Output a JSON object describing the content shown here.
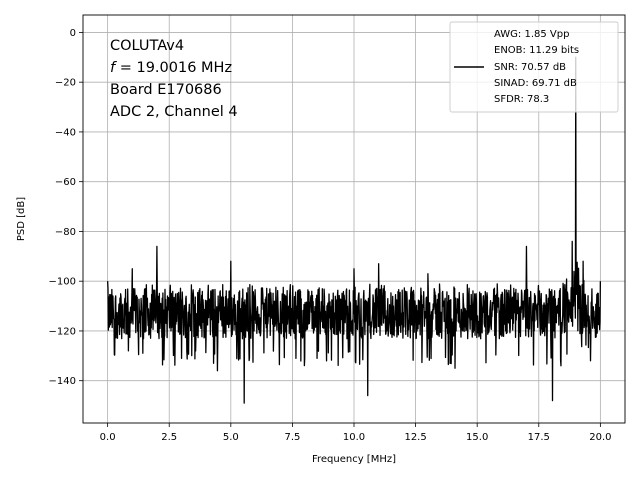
{
  "chart_data": {
    "type": "line",
    "title": "",
    "xlabel": "Frequency [MHz]",
    "ylabel": "PSD [dB]",
    "xlim": [
      -1.0,
      21.0
    ],
    "ylim": [
      -157,
      7
    ],
    "xticks": [
      0.0,
      2.5,
      5.0,
      7.5,
      10.0,
      12.5,
      15.0,
      17.5,
      20.0
    ],
    "xtick_labels": [
      "0.0",
      "2.5",
      "5.0",
      "7.5",
      "10.0",
      "12.5",
      "15.0",
      "17.5",
      "20.0"
    ],
    "yticks": [
      0,
      -20,
      -40,
      -60,
      -80,
      -100,
      -120,
      -140
    ],
    "ytick_labels": [
      "0",
      "−20",
      "−40",
      "−60",
      "−80",
      "−100",
      "−120",
      "−140"
    ],
    "grid": true,
    "line_color": "#000000",
    "noise_floor_db": -113,
    "noise_band_db": [
      -128,
      -104
    ],
    "peaks": [
      {
        "x": 0.0,
        "y": -100
      },
      {
        "x": 1.0,
        "y": -95
      },
      {
        "x": 2.0,
        "y": -86
      },
      {
        "x": 3.0,
        "y": -91
      },
      {
        "x": 5.0,
        "y": -92
      },
      {
        "x": 10.0,
        "y": -95
      },
      {
        "x": 11.0,
        "y": -93
      },
      {
        "x": 13.0,
        "y": -97
      },
      {
        "x": 17.0,
        "y": -86
      },
      {
        "x": 18.85,
        "y": -84
      },
      {
        "x": 19.0016,
        "y": -10
      },
      {
        "x": 19.3,
        "y": -92
      },
      {
        "x": 20.0,
        "y": -100
      }
    ],
    "dips": [
      {
        "x": 0.85,
        "y": -128
      },
      {
        "x": 3.0,
        "y": -131
      },
      {
        "x": 4.3,
        "y": -133
      },
      {
        "x": 4.45,
        "y": -136
      },
      {
        "x": 5.55,
        "y": -149
      },
      {
        "x": 10.55,
        "y": -146
      },
      {
        "x": 14.1,
        "y": -135
      },
      {
        "x": 18.05,
        "y": -148
      },
      {
        "x": 18.4,
        "y": -134
      },
      {
        "x": 19.6,
        "y": -132
      }
    ],
    "annotation": {
      "line1": "COLUTAv4",
      "line2_prefix": "f",
      "line2_rest": " = 19.0016 MHz",
      "line3": "Board E170686",
      "line4": "ADC 2, Channel 4"
    },
    "legend": {
      "position": "upper right",
      "entries": [
        "AWG: 1.85 Vpp",
        "ENOB: 11.29 bits",
        "SNR: 70.57 dB",
        "SINAD: 69.71 dB",
        "SFDR: 78.3"
      ]
    }
  }
}
